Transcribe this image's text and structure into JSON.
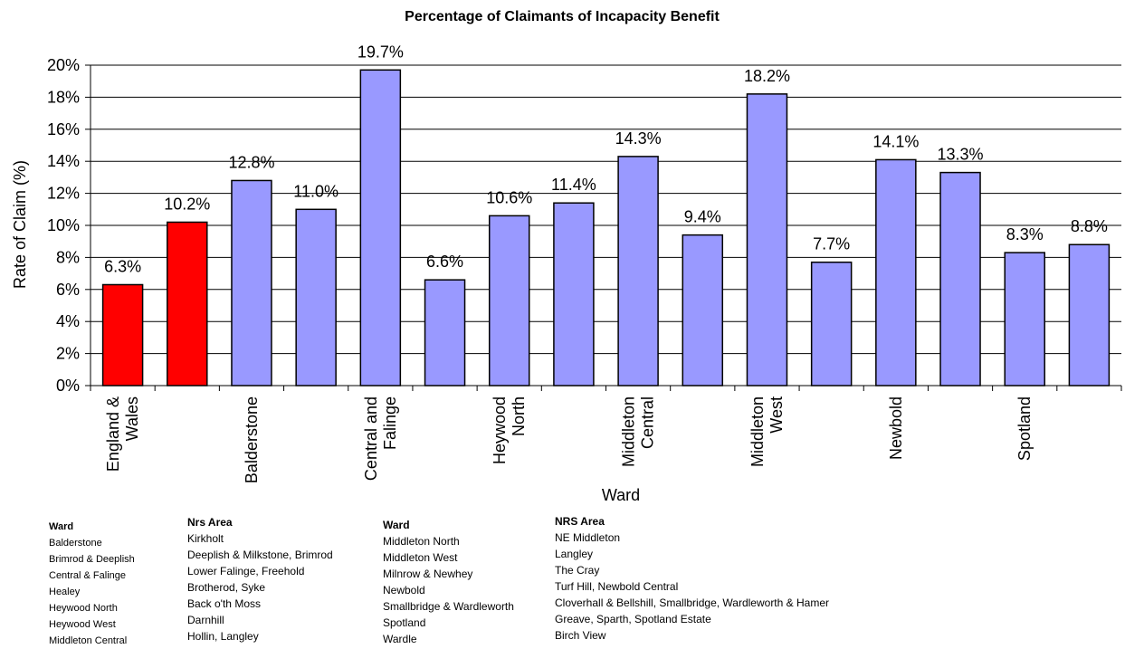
{
  "chart_data": {
    "type": "bar",
    "title": "Percentage of Claimants of Incapacity Benefit",
    "xlabel": "Ward",
    "ylabel": "Rate of Claim (%)",
    "ylim": [
      0,
      20
    ],
    "yticks": [
      "0%",
      "2%",
      "4%",
      "6%",
      "8%",
      "10%",
      "12%",
      "14%",
      "16%",
      "18%",
      "20%"
    ],
    "grid": true,
    "categories": [
      "England & Wales",
      "",
      "Balderstone",
      "",
      "Central and Falinge",
      "",
      "Heywood North",
      "",
      "Middleton Central",
      "",
      "Middleton West",
      "",
      "Newbold",
      "",
      "Spotland",
      ""
    ],
    "category_tick_lines": [
      [
        "England &",
        "Wales"
      ],
      [],
      [
        "Balderstone"
      ],
      [],
      [
        "Central and",
        "Falinge"
      ],
      [],
      [
        "Heywood",
        "North"
      ],
      [],
      [
        "Middleton",
        "Central"
      ],
      [],
      [
        "Middleton",
        "West"
      ],
      [],
      [
        "Newbold"
      ],
      [],
      [
        "Spotland"
      ],
      []
    ],
    "values": [
      6.3,
      10.2,
      12.8,
      11.0,
      19.7,
      6.6,
      10.6,
      11.4,
      14.3,
      9.4,
      18.2,
      7.7,
      14.1,
      13.3,
      8.3,
      8.8
    ],
    "data_labels": [
      "6.3%",
      "10.2%",
      "12.8%",
      "11.0%",
      "19.7%",
      "6.6%",
      "10.6%",
      "11.4%",
      "14.3%",
      "9.4%",
      "18.2%",
      "7.7%",
      "14.1%",
      "13.3%",
      "8.3%",
      "8.8%"
    ],
    "bar_colors": [
      "#ff0000",
      "#ff0000",
      "#9999ff",
      "#9999ff",
      "#9999ff",
      "#9999ff",
      "#9999ff",
      "#9999ff",
      "#9999ff",
      "#9999ff",
      "#9999ff",
      "#9999ff",
      "#9999ff",
      "#9999ff",
      "#9999ff",
      "#9999ff"
    ]
  },
  "legend_tables": {
    "table1": {
      "header": "Ward",
      "rows": [
        "Balderstone",
        "Brimrod & Deeplish",
        "Central & Falinge",
        "Healey",
        "Heywood North",
        "Heywood West",
        "Middleton Central"
      ]
    },
    "table2": {
      "header": "Nrs Area",
      "rows": [
        "Kirkholt",
        "Deeplish & Milkstone, Brimrod",
        "Lower Falinge, Freehold",
        "Brotherod, Syke",
        "Back o'th Moss",
        "Darnhill",
        "Hollin, Langley"
      ]
    },
    "table3": {
      "header": "Ward",
      "rows": [
        "Middleton North",
        "Middleton West",
        "Milnrow & Newhey",
        "Newbold",
        "Smallbridge & Wardleworth",
        "Spotland",
        "Wardle"
      ]
    },
    "table4": {
      "header": "NRS Area",
      "rows": [
        "NE Middleton",
        "Langley",
        "The Cray",
        "Turf Hill, Newbold Central",
        "Cloverhall & Bellshill, Smallbridge, Wardleworth & Hamer",
        "Greave, Sparth, Spotland Estate",
        "Birch View"
      ]
    }
  }
}
